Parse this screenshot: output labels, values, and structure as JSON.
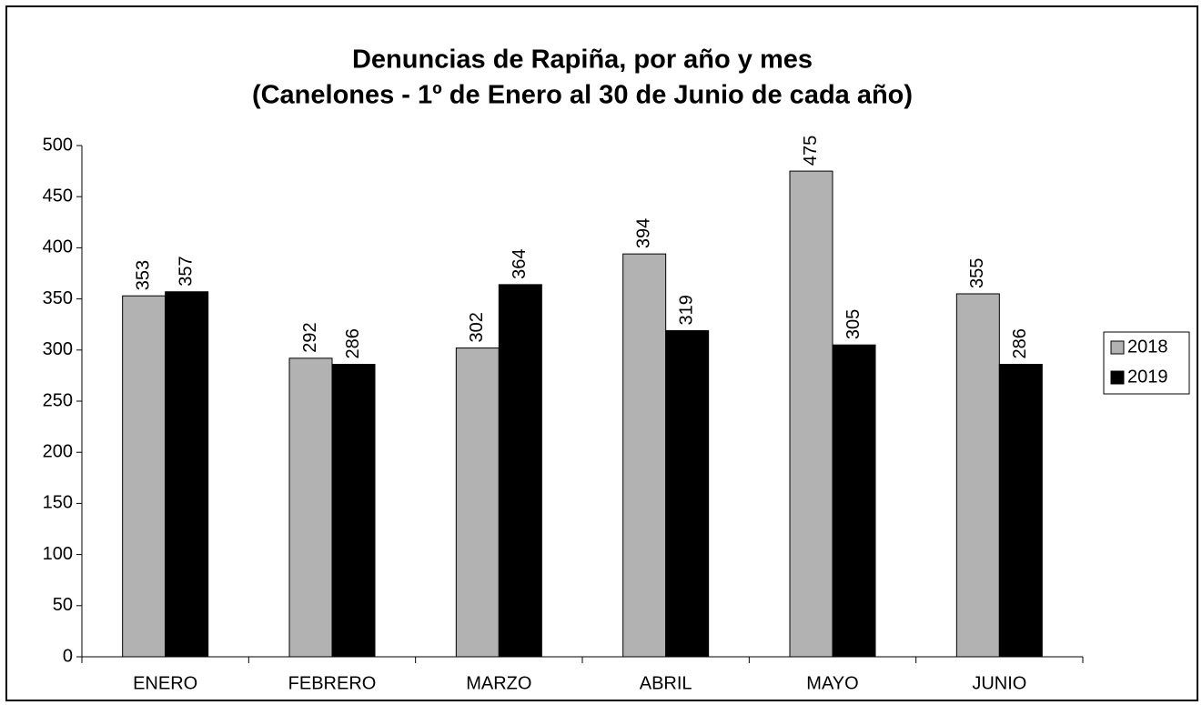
{
  "chart_data": {
    "type": "bar",
    "title": "Denuncias de Rapiña, por año y mes",
    "subtitle": "(Canelones - 1º de Enero al 30 de Junio de cada año)",
    "categories": [
      "ENERO",
      "FEBRERO",
      "MARZO",
      "ABRIL",
      "MAYO",
      "JUNIO"
    ],
    "series": [
      {
        "name": "2018",
        "color": "#b2b2b2",
        "values": [
          353,
          292,
          302,
          394,
          475,
          355
        ]
      },
      {
        "name": "2019",
        "color": "#000000",
        "values": [
          357,
          286,
          364,
          319,
          305,
          286
        ]
      }
    ],
    "ylim": [
      0,
      500
    ],
    "yticks": [
      0,
      50,
      100,
      150,
      200,
      250,
      300,
      350,
      400,
      450,
      500
    ],
    "grid": false,
    "legend": "right"
  }
}
